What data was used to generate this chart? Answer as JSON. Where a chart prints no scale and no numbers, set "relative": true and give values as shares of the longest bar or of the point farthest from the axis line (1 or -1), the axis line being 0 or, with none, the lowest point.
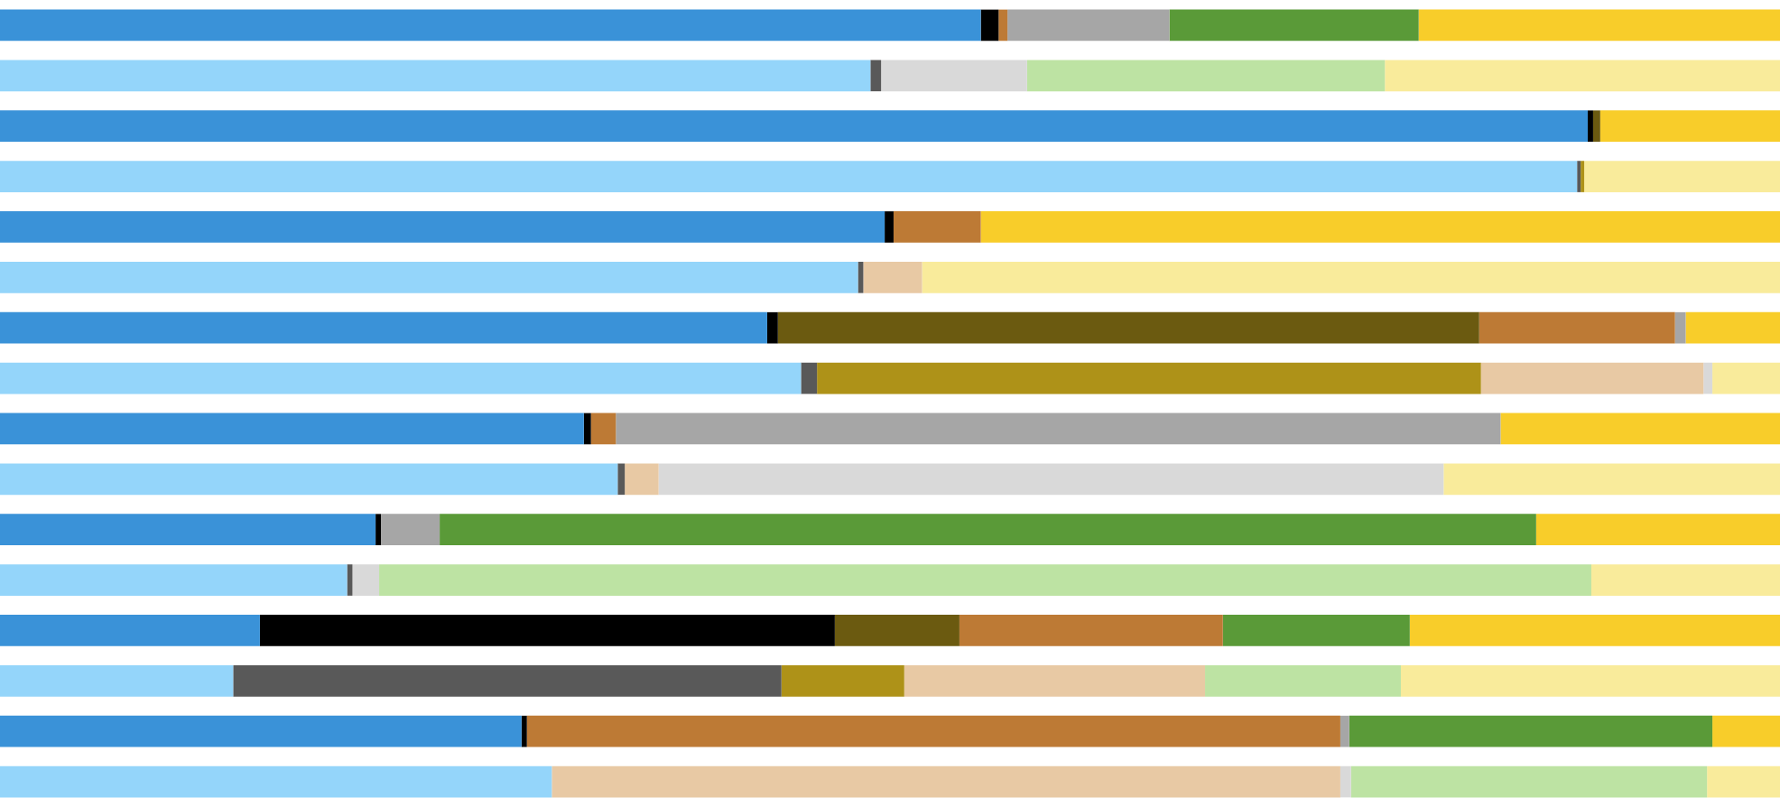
{
  "chart_data": {
    "type": "bar",
    "orientation": "horizontal",
    "stacked": true,
    "relative": true,
    "legend": false,
    "categories": [
      null,
      null,
      null,
      null,
      null,
      null,
      null,
      null,
      null,
      null,
      null,
      null,
      null,
      null,
      null,
      null
    ],
    "series": [
      {
        "colors": [
          "#3a92d8",
          "#94d5fa",
          "#3a92d8",
          "#94d5fa",
          "#3a92d8",
          "#94d5fa",
          "#3a92d8",
          "#94d5fa",
          "#3a92d8",
          "#94d5fa",
          "#3a92d8",
          "#94d5fa",
          "#3a92d8",
          "#94d5fa",
          "#3a92d8",
          "#94d5fa"
        ],
        "values": [
          0.551,
          0.489,
          0.892,
          0.886,
          0.497,
          0.482,
          0.431,
          0.45,
          0.328,
          0.347,
          0.211,
          0.195,
          0.146,
          0.131,
          0.293,
          0.31
        ]
      },
      {
        "colors": [
          "#000000",
          "#595959",
          "#000000",
          "#595959",
          "#000000",
          "#595959",
          "#000000",
          "#595959",
          "#000000",
          "#595959",
          "#000000",
          "#595959",
          "#000000",
          "#595959",
          "#000000",
          "#595959"
        ],
        "values": [
          0.01,
          0.006,
          0.003,
          0.002,
          0.005,
          0.003,
          0.006,
          0.009,
          0.004,
          0.004,
          0.003,
          0.003,
          0.323,
          0.308,
          0.003,
          0
        ]
      },
      {
        "colors": [
          "#6b5a10",
          "#ae9218",
          "#6b5a10",
          "#ae9218",
          "#6b5a10",
          "#ae9218",
          "#6b5a10",
          "#ae9218",
          "#6b5a10",
          "#ae9218",
          "#6b5a10",
          "#ae9218",
          "#6b5a10",
          "#ae9218",
          "#6b5a10",
          "#ae9218"
        ],
        "values": [
          0,
          0,
          0.004,
          0.002,
          0,
          0,
          0.394,
          0.373,
          0,
          0,
          0,
          0,
          0.07,
          0.069,
          0,
          0
        ]
      },
      {
        "colors": [
          "#bd7a35",
          "#e8c9a4",
          "#bd7a35",
          "#e8c9a4",
          "#bd7a35",
          "#e8c9a4",
          "#bd7a35",
          "#e8c9a4",
          "#bd7a35",
          "#e8c9a4",
          "#bd7a35",
          "#e8c9a4",
          "#bd7a35",
          "#e8c9a4",
          "#bd7a35",
          "#e8c9a4"
        ],
        "values": [
          0.005,
          0,
          0,
          0,
          0.049,
          0.033,
          0.11,
          0.125,
          0.014,
          0.019,
          0,
          0,
          0.148,
          0.169,
          0.457,
          0.443
        ]
      },
      {
        "colors": [
          "#a6a6a6",
          "#d9d9d9",
          "#a6a6a6",
          "#d9d9d9",
          "#a6a6a6",
          "#d9d9d9",
          "#a6a6a6",
          "#d9d9d9",
          "#a6a6a6",
          "#d9d9d9",
          "#a6a6a6",
          "#d9d9d9",
          "#a6a6a6",
          "#d9d9d9",
          "#a6a6a6",
          "#d9d9d9"
        ],
        "values": [
          0.091,
          0.082,
          0,
          0,
          0,
          0,
          0.006,
          0.005,
          0.497,
          0.441,
          0.033,
          0.015,
          0,
          0,
          0.005,
          0.006
        ]
      },
      {
        "colors": [
          "#5a9a38",
          "#bde3a3",
          "#5a9a38",
          "#bde3a3",
          "#5a9a38",
          "#bde3a3",
          "#5a9a38",
          "#bde3a3",
          "#5a9a38",
          "#bde3a3",
          "#5a9a38",
          "#bde3a3",
          "#5a9a38",
          "#bde3a3",
          "#5a9a38",
          "#bde3a3"
        ],
        "values": [
          0.14,
          0.201,
          0,
          0,
          0,
          0,
          0,
          0,
          0,
          0,
          0.616,
          0.681,
          0.105,
          0.11,
          0.204,
          0.2
        ]
      },
      {
        "colors": [
          "#f8cd2a",
          "#f9eb9b",
          "#f8cd2a",
          "#f9eb9b",
          "#f8cd2a",
          "#f9eb9b",
          "#f8cd2a",
          "#f9eb9b",
          "#f8cd2a",
          "#f9eb9b",
          "#f8cd2a",
          "#f9eb9b",
          "#f8cd2a",
          "#f9eb9b",
          "#f8cd2a",
          "#f9eb9b"
        ],
        "values": [
          0.203,
          0.222,
          0.101,
          0.11,
          0.449,
          0.482,
          0.053,
          0.038,
          0.157,
          0.189,
          0.137,
          0.106,
          0.208,
          0.213,
          0.038,
          0.041
        ]
      }
    ]
  }
}
